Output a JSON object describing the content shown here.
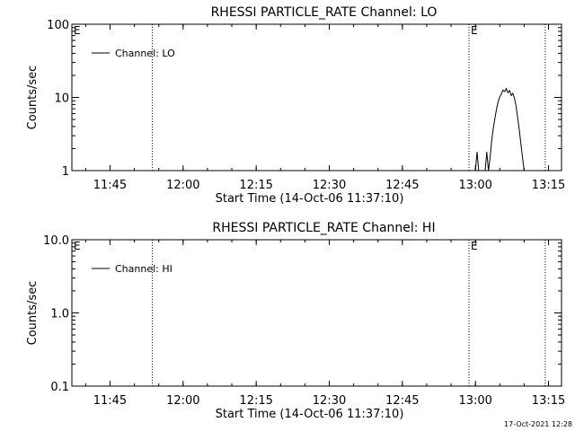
{
  "footer_timestamp": "17-Oct-2021 12:28",
  "chart_data": [
    {
      "type": "line",
      "title": "RHESSI PARTICLE_RATE Channel: LO",
      "xlabel": "Start Time (14-Oct-06 11:37:10)",
      "ylabel": "Counts/sec",
      "y_scale": "log",
      "ylim": [
        1,
        100
      ],
      "xlim": [
        "11:37:10",
        "13:17:40"
      ],
      "x_ticks": [
        "11:45",
        "12:00",
        "12:15",
        "12:30",
        "12:45",
        "13:00",
        "13:15"
      ],
      "y_ticks": [
        "1",
        "10",
        "100"
      ],
      "event_lines": [
        "11:53:40",
        "12:58:40",
        "13:14:20"
      ],
      "event_labels": [
        {
          "text": "E",
          "x": "11:37:10"
        },
        {
          "text": "E",
          "x": "12:58:40"
        }
      ],
      "legend": {
        "entries": [
          "Channel: LO"
        ],
        "position": "top-left"
      },
      "series": [
        {
          "name": "Channel: LO",
          "x": [
            "13:00:00",
            "13:00:20",
            "13:00:40",
            "13:01:00",
            "13:01:20",
            "13:02:00",
            "13:02:20",
            "13:02:40",
            "13:03:00",
            "13:03:20",
            "13:03:40",
            "13:04:00",
            "13:04:20",
            "13:04:40",
            "13:05:00",
            "13:05:20",
            "13:05:40",
            "13:06:00",
            "13:06:20",
            "13:06:40",
            "13:07:00",
            "13:07:20",
            "13:07:40",
            "13:08:00",
            "13:08:20",
            "13:08:40",
            "13:09:00",
            "13:09:20",
            "13:09:40",
            "13:10:00",
            "13:10:20",
            "13:10:40"
          ],
          "values": [
            1,
            1.8,
            1,
            1,
            1,
            1,
            1.8,
            1,
            1.5,
            2.6,
            3.8,
            5.2,
            7,
            8.8,
            10.2,
            11.2,
            12.6,
            12,
            13.2,
            11.6,
            12.4,
            10.6,
            11.4,
            9.8,
            7.6,
            5.2,
            3.6,
            2.3,
            1.5,
            1,
            1,
            1
          ]
        }
      ]
    },
    {
      "type": "line",
      "title": "RHESSI PARTICLE_RATE Channel: HI",
      "xlabel": "Start Time (14-Oct-06 11:37:10)",
      "ylabel": "Counts/sec",
      "y_scale": "log",
      "ylim": [
        0.1,
        10
      ],
      "xlim": [
        "11:37:10",
        "13:17:40"
      ],
      "x_ticks": [
        "11:45",
        "12:00",
        "12:15",
        "12:30",
        "12:45",
        "13:00",
        "13:15"
      ],
      "y_ticks": [
        "0.1",
        "1.0",
        "10.0"
      ],
      "event_lines": [
        "11:53:40",
        "12:58:40",
        "13:14:20"
      ],
      "event_labels": [
        {
          "text": "E",
          "x": "11:37:10"
        },
        {
          "text": "E",
          "x": "12:58:40"
        }
      ],
      "legend": {
        "entries": [
          "Channel: HI"
        ],
        "position": "top-left"
      },
      "series": [
        {
          "name": "Channel: HI",
          "x": [],
          "values": []
        }
      ]
    }
  ]
}
